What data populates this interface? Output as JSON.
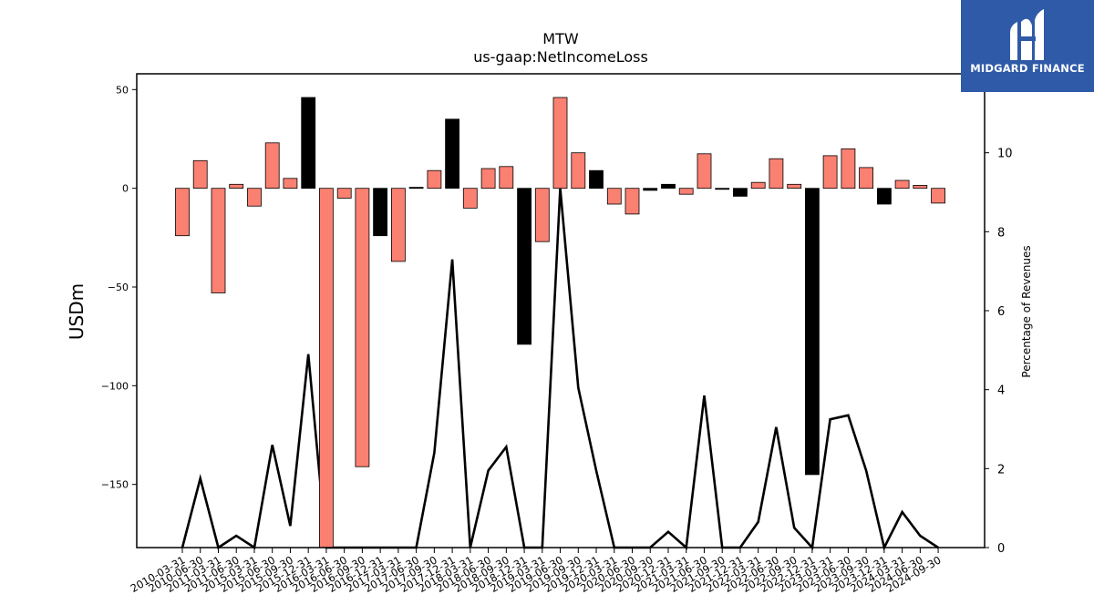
{
  "brand": {
    "name": "MIDGARD FINANCE",
    "background": "#2f5aa8",
    "icon": "midgard-logo-icon"
  },
  "chart_data": {
    "type": "bar",
    "title": "MTW",
    "subtitle": "us-gaap:NetIncomeLoss",
    "ylabel": "USDm",
    "y2label": "Percentage of Revenues",
    "ylim": [
      -182,
      58
    ],
    "y2lim": [
      0,
      12
    ],
    "yticks": [
      50,
      0,
      -50,
      -100,
      -150
    ],
    "y2ticks": [
      0,
      2,
      4,
      6,
      8,
      10
    ],
    "colors": {
      "positive_q": "#fa8072",
      "annual": "#000000",
      "line": "#000000"
    },
    "categories": [
      "2010-03-31",
      "2010-06-30",
      "2011-03-31",
      "2011-06-30",
      "2015-03-31",
      "2015-06-30",
      "2015-09-30",
      "2015-12-31",
      "2016-03-31",
      "2016-06-30",
      "2016-09-30",
      "2016-12-31",
      "2017-03-31",
      "2017-06-30",
      "2017-09-30",
      "2017-12-31",
      "2018-03-31",
      "2018-06-30",
      "2018-09-30",
      "2018-12-31",
      "2019-03-31",
      "2019-06-30",
      "2019-09-30",
      "2019-12-31",
      "2020-03-31",
      "2020-06-30",
      "2020-09-30",
      "2020-12-31",
      "2021-03-31",
      "2021-06-30",
      "2021-09-30",
      "2021-12-31",
      "2022-03-31",
      "2022-06-30",
      "2022-09-30",
      "2022-12-31",
      "2023-03-31",
      "2023-06-30",
      "2023-09-30",
      "2023-12-31",
      "2024-03-31",
      "2024-06-30",
      "2024-09-30"
    ],
    "series": [
      {
        "values": [
          -24,
          14,
          -53,
          2,
          -9,
          23,
          5,
          46,
          -190,
          -5,
          -141,
          -24,
          -37,
          0.5,
          9,
          35,
          -10,
          10,
          11,
          -79,
          -27,
          46,
          18,
          9,
          -8,
          -13,
          -1,
          2,
          -3,
          17.5,
          -0.5,
          -4,
          3,
          15,
          2,
          -145,
          16.5,
          20,
          10.5,
          -8,
          4,
          1.5,
          -7.5
        ],
        "annual": [
          false,
          false,
          false,
          false,
          false,
          false,
          false,
          true,
          false,
          false,
          false,
          true,
          false,
          true,
          false,
          true,
          false,
          false,
          false,
          true,
          false,
          false,
          false,
          true,
          false,
          false,
          true,
          true,
          false,
          false,
          true,
          true,
          false,
          false,
          false,
          true,
          false,
          false,
          false,
          true,
          false,
          false,
          false
        ]
      },
      {
        "axis": "right",
        "values": [
          0,
          1.75,
          0,
          0.3,
          0,
          2.6,
          0.55,
          4.9,
          0,
          0,
          0,
          0,
          0,
          0,
          2.4,
          7.3,
          0,
          1.95,
          2.55,
          0,
          0,
          9.1,
          4.05,
          1.95,
          0,
          0,
          0,
          0.4,
          0,
          3.85,
          0,
          0,
          0.65,
          3.05,
          0.5,
          0,
          3.25,
          3.35,
          1.95,
          0,
          0.9,
          0.3,
          0
        ]
      }
    ]
  }
}
